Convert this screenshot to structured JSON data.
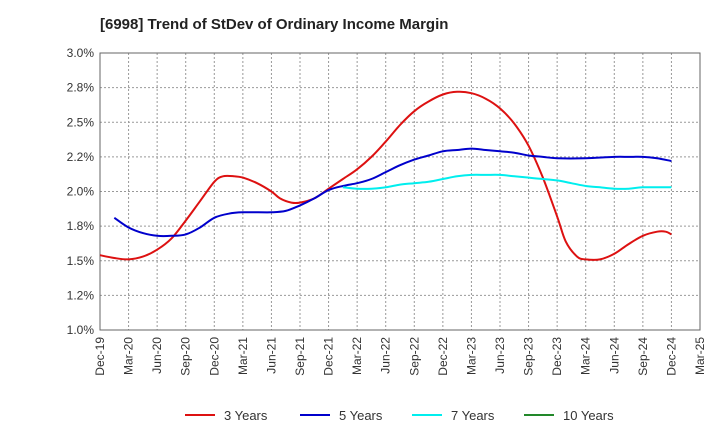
{
  "chart_data": {
    "type": "line",
    "title": "[6998]  Trend of StDev of Ordinary Income Margin",
    "xlabel": "",
    "ylabel": "",
    "ylim": [
      1.0,
      3.0
    ],
    "y_ticks": [
      "1.0%",
      "1.2%",
      "1.5%",
      "1.8%",
      "2.0%",
      "2.2%",
      "2.5%",
      "2.8%",
      "3.0%"
    ],
    "y_tick_values": [
      1.0,
      1.25,
      1.5,
      1.75,
      2.0,
      2.25,
      2.5,
      2.75,
      3.0
    ],
    "x_ticks": [
      "Dec-19",
      "Mar-20",
      "Jun-20",
      "Sep-20",
      "Dec-20",
      "Mar-21",
      "Jun-21",
      "Sep-21",
      "Dec-21",
      "Mar-22",
      "Jun-22",
      "Sep-22",
      "Dec-22",
      "Mar-23",
      "Jun-23",
      "Sep-23",
      "Dec-23",
      "Mar-24",
      "Jun-24",
      "Sep-24",
      "Dec-24",
      "Mar-25"
    ],
    "grid": true,
    "legend_position": "bottom",
    "series": [
      {
        "name": "3 Years",
        "color": "#dd1111",
        "points": [
          [
            0,
            1.54
          ],
          [
            0.5,
            1.52
          ],
          [
            1,
            1.51
          ],
          [
            1.5,
            1.53
          ],
          [
            2,
            1.58
          ],
          [
            2.5,
            1.66
          ],
          [
            3,
            1.79
          ],
          [
            3.5,
            1.93
          ],
          [
            4,
            2.07
          ],
          [
            4.3,
            2.11
          ],
          [
            4.7,
            2.11
          ],
          [
            5,
            2.1
          ],
          [
            5.5,
            2.06
          ],
          [
            6,
            2.0
          ],
          [
            6.3,
            1.95
          ],
          [
            6.7,
            1.92
          ],
          [
            7,
            1.92
          ],
          [
            7.5,
            1.95
          ],
          [
            8,
            2.02
          ],
          [
            8.5,
            2.09
          ],
          [
            9,
            2.16
          ],
          [
            9.5,
            2.25
          ],
          [
            10,
            2.36
          ],
          [
            10.5,
            2.48
          ],
          [
            11,
            2.58
          ],
          [
            11.5,
            2.65
          ],
          [
            12,
            2.7
          ],
          [
            12.5,
            2.72
          ],
          [
            13,
            2.71
          ],
          [
            13.5,
            2.67
          ],
          [
            14,
            2.6
          ],
          [
            14.5,
            2.49
          ],
          [
            15,
            2.33
          ],
          [
            15.5,
            2.1
          ],
          [
            16,
            1.82
          ],
          [
            16.3,
            1.64
          ],
          [
            16.7,
            1.53
          ],
          [
            17,
            1.51
          ],
          [
            17.5,
            1.51
          ],
          [
            18,
            1.55
          ],
          [
            18.5,
            1.62
          ],
          [
            19,
            1.68
          ],
          [
            19.5,
            1.71
          ],
          [
            19.8,
            1.71
          ],
          [
            20,
            1.69
          ]
        ]
      },
      {
        "name": "5 Years",
        "color": "#0000cc",
        "points": [
          [
            0.5,
            1.81
          ],
          [
            1,
            1.74
          ],
          [
            1.5,
            1.7
          ],
          [
            2,
            1.68
          ],
          [
            2.5,
            1.68
          ],
          [
            3,
            1.69
          ],
          [
            3.5,
            1.74
          ],
          [
            4,
            1.81
          ],
          [
            4.5,
            1.84
          ],
          [
            5,
            1.85
          ],
          [
            6,
            1.85
          ],
          [
            6.5,
            1.86
          ],
          [
            7,
            1.9
          ],
          [
            7.5,
            1.95
          ],
          [
            8,
            2.01
          ],
          [
            8.5,
            2.04
          ],
          [
            9,
            2.06
          ],
          [
            9.5,
            2.09
          ],
          [
            10,
            2.14
          ],
          [
            10.5,
            2.19
          ],
          [
            11,
            2.23
          ],
          [
            11.5,
            2.26
          ],
          [
            12,
            2.29
          ],
          [
            12.5,
            2.3
          ],
          [
            13,
            2.31
          ],
          [
            13.5,
            2.3
          ],
          [
            14,
            2.29
          ],
          [
            14.5,
            2.28
          ],
          [
            15,
            2.26
          ],
          [
            15.5,
            2.25
          ],
          [
            16,
            2.24
          ],
          [
            17,
            2.24
          ],
          [
            18,
            2.25
          ],
          [
            18.5,
            2.25
          ],
          [
            19,
            2.25
          ],
          [
            19.5,
            2.24
          ],
          [
            20,
            2.22
          ]
        ]
      },
      {
        "name": "7 Years",
        "color": "#00eeee",
        "points": [
          [
            8.5,
            2.03
          ],
          [
            9,
            2.02
          ],
          [
            9.5,
            2.02
          ],
          [
            10,
            2.03
          ],
          [
            10.5,
            2.05
          ],
          [
            11,
            2.06
          ],
          [
            11.5,
            2.07
          ],
          [
            12,
            2.09
          ],
          [
            12.5,
            2.11
          ],
          [
            13,
            2.12
          ],
          [
            13.5,
            2.12
          ],
          [
            14,
            2.12
          ],
          [
            14.5,
            2.11
          ],
          [
            15,
            2.1
          ],
          [
            15.5,
            2.09
          ],
          [
            16,
            2.08
          ],
          [
            16.5,
            2.06
          ],
          [
            17,
            2.04
          ],
          [
            17.5,
            2.03
          ],
          [
            18,
            2.02
          ],
          [
            18.5,
            2.02
          ],
          [
            19,
            2.03
          ],
          [
            20,
            2.03
          ]
        ]
      },
      {
        "name": "10 Years",
        "color": "#22882a",
        "points": []
      }
    ]
  }
}
